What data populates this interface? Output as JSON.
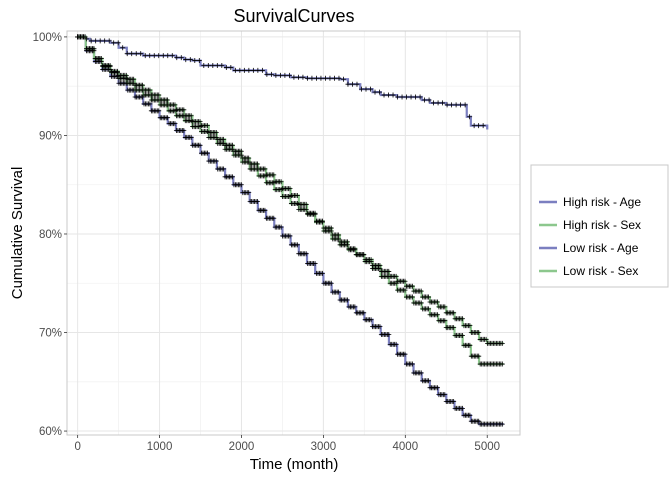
{
  "chart_data": {
    "type": "line",
    "title": "SurvivalCurves",
    "xlabel": "Time (month)",
    "ylabel": "Cumulative Survival",
    "xlim": [
      -130,
      5400
    ],
    "ylim": [
      59.6,
      100.6
    ],
    "x_ticks": [
      0,
      1000,
      2000,
      3000,
      4000,
      5000
    ],
    "x_tick_labels": [
      "0",
      "1000",
      "2000",
      "3000",
      "4000",
      "5000"
    ],
    "y_ticks": [
      60,
      70,
      80,
      90,
      100
    ],
    "y_tick_labels": [
      "60%",
      "70%",
      "80%",
      "90%",
      "100%"
    ],
    "grid": true,
    "legend_position": "right",
    "censor_marker": "+",
    "series": [
      {
        "name": "High risk - Age",
        "color": "#7b7fc0",
        "marker_color": "#000000",
        "points": [
          [
            0,
            100
          ],
          [
            100,
            99.8
          ],
          [
            150,
            99.6
          ],
          [
            250,
            99.6
          ],
          [
            350,
            99.6
          ],
          [
            400,
            99.4
          ],
          [
            500,
            98.9
          ],
          [
            600,
            98.3
          ],
          [
            700,
            98.3
          ],
          [
            800,
            98.1
          ],
          [
            900,
            98.1
          ],
          [
            1000,
            98.1
          ],
          [
            1100,
            98.1
          ],
          [
            1200,
            97.9
          ],
          [
            1300,
            97.7
          ],
          [
            1400,
            97.6
          ],
          [
            1500,
            97.1
          ],
          [
            1700,
            97.1
          ],
          [
            1800,
            96.9
          ],
          [
            1900,
            96.6
          ],
          [
            2000,
            96.6
          ],
          [
            2200,
            96.6
          ],
          [
            2300,
            96.2
          ],
          [
            2400,
            96.1
          ],
          [
            2600,
            95.9
          ],
          [
            2800,
            95.8
          ],
          [
            3000,
            95.8
          ],
          [
            3200,
            95.7
          ],
          [
            3300,
            95.2
          ],
          [
            3450,
            94.7
          ],
          [
            3600,
            94.4
          ],
          [
            3700,
            94.1
          ],
          [
            3900,
            93.9
          ],
          [
            4100,
            93.9
          ],
          [
            4200,
            93.6
          ],
          [
            4300,
            93.3
          ],
          [
            4500,
            93.1
          ],
          [
            4700,
            93.1
          ],
          [
            4750,
            91.9
          ],
          [
            4800,
            91.0
          ],
          [
            4900,
            91.0
          ],
          [
            5000,
            90.6
          ]
        ]
      },
      {
        "name": "High risk - Sex",
        "color": "#8cc78d",
        "marker_color": "#000000",
        "points": [
          [
            0,
            100
          ],
          [
            100,
            98.8
          ],
          [
            200,
            97.8
          ],
          [
            300,
            97.1
          ],
          [
            400,
            96.5
          ],
          [
            500,
            96.1
          ],
          [
            600,
            95.7
          ],
          [
            700,
            95.1
          ],
          [
            800,
            94.6
          ],
          [
            900,
            94.1
          ],
          [
            1000,
            93.6
          ],
          [
            1100,
            93.1
          ],
          [
            1200,
            92.6
          ],
          [
            1300,
            92.0
          ],
          [
            1400,
            91.4
          ],
          [
            1500,
            91.0
          ],
          [
            1600,
            90.3
          ],
          [
            1700,
            89.6
          ],
          [
            1800,
            89.0
          ],
          [
            1900,
            88.4
          ],
          [
            2000,
            87.7
          ],
          [
            2100,
            87.1
          ],
          [
            2200,
            86.6
          ],
          [
            2300,
            86.0
          ],
          [
            2400,
            85.3
          ],
          [
            2500,
            84.6
          ],
          [
            2600,
            83.9
          ],
          [
            2700,
            83.0
          ],
          [
            2800,
            82.1
          ],
          [
            2900,
            81.2
          ],
          [
            3000,
            80.3
          ],
          [
            3100,
            79.5
          ],
          [
            3200,
            78.9
          ],
          [
            3300,
            78.4
          ],
          [
            3400,
            77.9
          ],
          [
            3500,
            77.4
          ],
          [
            3600,
            76.8
          ],
          [
            3700,
            76.2
          ],
          [
            3800,
            75.7
          ],
          [
            3900,
            75.2
          ],
          [
            4000,
            74.7
          ],
          [
            4100,
            74.2
          ],
          [
            4200,
            73.6
          ],
          [
            4300,
            73.1
          ],
          [
            4400,
            72.6
          ],
          [
            4500,
            72.0
          ],
          [
            4600,
            71.4
          ],
          [
            4700,
            70.7
          ],
          [
            4800,
            70.0
          ],
          [
            4900,
            69.3
          ],
          [
            5000,
            68.9
          ],
          [
            5200,
            68.9
          ]
        ]
      },
      {
        "name": "Low risk - Age",
        "color": "#7b7fc0",
        "marker_color": "#000000",
        "points": [
          [
            0,
            100
          ],
          [
            100,
            98.6
          ],
          [
            200,
            97.5
          ],
          [
            300,
            96.7
          ],
          [
            400,
            96.0
          ],
          [
            500,
            95.3
          ],
          [
            600,
            94.6
          ],
          [
            700,
            93.9
          ],
          [
            800,
            93.2
          ],
          [
            900,
            92.5
          ],
          [
            1000,
            91.8
          ],
          [
            1100,
            91.2
          ],
          [
            1200,
            90.5
          ],
          [
            1300,
            89.8
          ],
          [
            1400,
            89.0
          ],
          [
            1500,
            88.2
          ],
          [
            1600,
            87.4
          ],
          [
            1700,
            86.6
          ],
          [
            1800,
            85.8
          ],
          [
            1900,
            85.0
          ],
          [
            2000,
            84.2
          ],
          [
            2100,
            83.3
          ],
          [
            2200,
            82.4
          ],
          [
            2300,
            81.6
          ],
          [
            2400,
            80.7
          ],
          [
            2500,
            79.8
          ],
          [
            2600,
            78.9
          ],
          [
            2700,
            78.0
          ],
          [
            2800,
            77.0
          ],
          [
            2900,
            76.0
          ],
          [
            3000,
            75.0
          ],
          [
            3100,
            74.1
          ],
          [
            3200,
            73.3
          ],
          [
            3300,
            72.6
          ],
          [
            3400,
            72.0
          ],
          [
            3500,
            71.3
          ],
          [
            3600,
            70.6
          ],
          [
            3700,
            69.8
          ],
          [
            3800,
            68.8
          ],
          [
            3900,
            67.8
          ],
          [
            4000,
            66.8
          ],
          [
            4100,
            65.9
          ],
          [
            4200,
            65.1
          ],
          [
            4300,
            64.4
          ],
          [
            4400,
            63.7
          ],
          [
            4500,
            63.0
          ],
          [
            4600,
            62.3
          ],
          [
            4700,
            61.6
          ],
          [
            4800,
            61.0
          ],
          [
            4900,
            60.7
          ],
          [
            5000,
            60.7
          ],
          [
            5200,
            60.7
          ]
        ]
      },
      {
        "name": "Low risk - Sex",
        "color": "#8cc78d",
        "marker_color": "#000000",
        "points": [
          [
            0,
            100
          ],
          [
            100,
            98.8
          ],
          [
            200,
            97.8
          ],
          [
            300,
            97.0
          ],
          [
            400,
            96.4
          ],
          [
            500,
            95.8
          ],
          [
            600,
            95.3
          ],
          [
            700,
            94.6
          ],
          [
            800,
            94.1
          ],
          [
            900,
            93.6
          ],
          [
            1000,
            93.1
          ],
          [
            1100,
            92.5
          ],
          [
            1200,
            92.0
          ],
          [
            1300,
            91.5
          ],
          [
            1400,
            90.9
          ],
          [
            1500,
            90.4
          ],
          [
            1600,
            89.8
          ],
          [
            1700,
            89.2
          ],
          [
            1800,
            88.6
          ],
          [
            1900,
            88.0
          ],
          [
            2000,
            87.3
          ],
          [
            2100,
            86.6
          ],
          [
            2200,
            85.9
          ],
          [
            2300,
            85.2
          ],
          [
            2400,
            84.5
          ],
          [
            2500,
            83.8
          ],
          [
            2600,
            83.1
          ],
          [
            2700,
            82.5
          ],
          [
            2800,
            82.0
          ],
          [
            2900,
            81.3
          ],
          [
            3000,
            80.6
          ],
          [
            3100,
            79.9
          ],
          [
            3200,
            79.2
          ],
          [
            3300,
            78.5
          ],
          [
            3400,
            77.9
          ],
          [
            3500,
            77.2
          ],
          [
            3600,
            76.5
          ],
          [
            3700,
            75.7
          ],
          [
            3800,
            75.0
          ],
          [
            3900,
            74.3
          ],
          [
            4000,
            73.6
          ],
          [
            4100,
            73.0
          ],
          [
            4200,
            72.4
          ],
          [
            4300,
            71.8
          ],
          [
            4400,
            71.2
          ],
          [
            4500,
            70.5
          ],
          [
            4600,
            69.7
          ],
          [
            4700,
            68.7
          ],
          [
            4800,
            67.6
          ],
          [
            4900,
            66.8
          ],
          [
            5000,
            66.8
          ],
          [
            5200,
            66.8
          ]
        ]
      }
    ]
  }
}
